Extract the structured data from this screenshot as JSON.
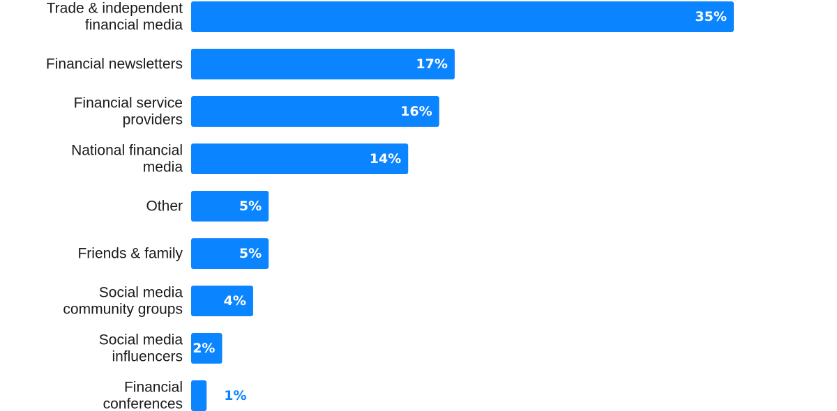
{
  "colors": {
    "bar": "#0a84ff",
    "label_inside": "#ffffff",
    "label_outside": "#0a84ff",
    "category_text": "#1a1a1a"
  },
  "chart_data": {
    "type": "bar",
    "orientation": "horizontal",
    "title": "",
    "xlabel": "",
    "ylabel": "",
    "grid": false,
    "legend": "none",
    "xlim": [
      0,
      35
    ],
    "categories": [
      [
        "Trade & independent",
        "financial media"
      ],
      [
        "Financial newsletters"
      ],
      [
        "Financial service",
        "providers"
      ],
      [
        "National financial",
        "media"
      ],
      [
        "Other"
      ],
      [
        "Friends & family"
      ],
      [
        "Social media",
        "community groups"
      ],
      [
        "Social media",
        "influencers"
      ],
      [
        "Financial",
        "conferences"
      ]
    ],
    "values": [
      35,
      17,
      16,
      14,
      5,
      5,
      4,
      2,
      1
    ],
    "data_labels": [
      "35%",
      "17%",
      "16%",
      "14%",
      "5%",
      "5%",
      "4%",
      "2%",
      "1%"
    ]
  }
}
